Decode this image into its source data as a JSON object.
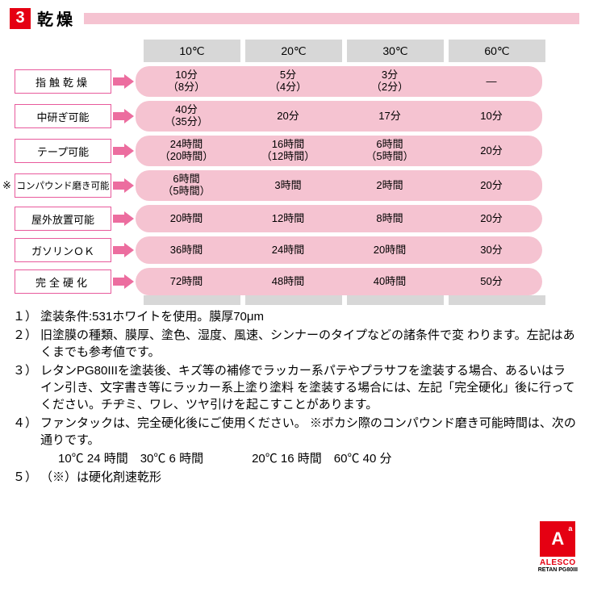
{
  "header": {
    "number": "3",
    "title": "乾燥",
    "stripe_color": "#f5c3d1",
    "number_bg": "#e50012"
  },
  "columns": [
    "10℃",
    "20℃",
    "30℃",
    "60℃"
  ],
  "rows": [
    {
      "label": "指触乾燥",
      "label_style": "spaced",
      "has_asterisk": false,
      "tall": true,
      "cells": [
        "10分\n（8分）",
        "5分\n（4分）",
        "3分\n（2分）",
        "―"
      ]
    },
    {
      "label": "中研ぎ可能",
      "label_style": "normal",
      "has_asterisk": false,
      "tall": true,
      "cells": [
        "40分\n（35分）",
        "20分",
        "17分",
        "10分"
      ]
    },
    {
      "label": "テープ可能",
      "label_style": "normal",
      "has_asterisk": false,
      "tall": true,
      "cells": [
        "24時間\n（20時間）",
        "16時間\n（12時間）",
        "6時間\n（5時間）",
        "20分"
      ]
    },
    {
      "label": "コンパウンド磨き可能",
      "label_style": "small",
      "has_asterisk": true,
      "tall": true,
      "cells": [
        "6時間\n（5時間）",
        "3時間",
        "2時間",
        "20分"
      ]
    },
    {
      "label": "屋外放置可能",
      "label_style": "normal",
      "has_asterisk": false,
      "tall": false,
      "cells": [
        "20時間",
        "12時間",
        "8時間",
        "20分"
      ]
    },
    {
      "label": "ガソリンＯＫ",
      "label_style": "normal",
      "has_asterisk": false,
      "tall": false,
      "cells": [
        "36時間",
        "24時間",
        "20時間",
        "30分"
      ]
    },
    {
      "label": "完全硬化",
      "label_style": "spaced",
      "has_asterisk": false,
      "tall": false,
      "cells": [
        "72時間",
        "48時間",
        "40時間",
        "50分"
      ]
    }
  ],
  "colors": {
    "pill_bg": "#f5c3d1",
    "col_head_bg": "#d7d7d7",
    "label_border": "#e85a9c",
    "arrow": "#ec6d9f"
  },
  "notes": [
    {
      "num": "１）",
      "body": "塗装条件:531ホワイトを使用。膜厚70μm"
    },
    {
      "num": "２）",
      "body": "旧塗膜の種類、膜厚、塗色、湿度、風速、シンナーのタイプなどの諸条件で変 わります。左記はあくまでも参考値です。"
    },
    {
      "num": "３）",
      "body": "レタンPG80IIIを塗装後、キズ等の補修でラッカー系パテやプラサフを塗装する場合、あるいはライン引き、文字書き等にラッカー系上塗り塗料 を塗装する場合には、左記「完全硬化」後に行ってください。チヂミ、ワレ、ツヤ引けを起こすことがあります。"
    },
    {
      "num": "４）",
      "body": "ファンタックは、完全硬化後にご使用ください。 ※ボカシ際のコンパウンド磨き可能時間は、次の通りです。"
    },
    {
      "num": "",
      "body": "10℃ 24 時間　30℃ 6 時間　　　　20℃ 16 時間　60℃ 40 分",
      "indent": true
    },
    {
      "num": "５）",
      "body": "（※）は硬化剤速乾形"
    }
  ],
  "logo": {
    "letter": "A",
    "sup": "a",
    "text1": "ALESCO",
    "text2": "RETAN PG80III"
  }
}
